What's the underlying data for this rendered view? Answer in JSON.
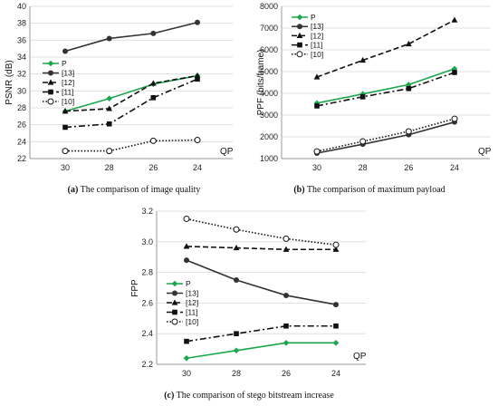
{
  "chart_data": [
    {
      "type": "line",
      "caption_label": "(a)",
      "caption_text": "The comparison of image quality",
      "xlabel": "QP",
      "ylabel": "PSNR (dB)",
      "categories": [
        "30",
        "28",
        "26",
        "24"
      ],
      "yticks": [
        22,
        24,
        26,
        28,
        30,
        32,
        34,
        36,
        38,
        40
      ],
      "ylim": [
        22,
        40
      ],
      "legend_position": "left",
      "series": [
        {
          "name": "P",
          "values": [
            27.6,
            29.1,
            30.8,
            31.8
          ],
          "color": "#1aa64a",
          "dash": "",
          "marker": "diamond"
        },
        {
          "name": "[13]",
          "values": [
            34.7,
            36.2,
            36.8,
            38.1
          ],
          "color": "#333333",
          "dash": "",
          "marker": "circle"
        },
        {
          "name": "[12]",
          "values": [
            27.6,
            27.9,
            30.9,
            31.8
          ],
          "color": "#111111",
          "dash": "6,3",
          "marker": "triangle"
        },
        {
          "name": "[11]",
          "values": [
            25.7,
            26.1,
            29.2,
            31.4
          ],
          "color": "#111111",
          "dash": "7,3,2,3",
          "marker": "square"
        },
        {
          "name": "[10]",
          "values": [
            22.9,
            22.9,
            24.1,
            24.2
          ],
          "color": "#111111",
          "dash": "1.5,2",
          "marker": "opencircle"
        }
      ]
    },
    {
      "type": "line",
      "caption_label": "(b)",
      "caption_text": "The comparison of maximum payload",
      "xlabel": "QP",
      "ylabel": "PPF (bits/frame)",
      "categories": [
        "30",
        "28",
        "26",
        "24"
      ],
      "yticks": [
        1000,
        2000,
        3000,
        4000,
        5000,
        6000,
        7000,
        8000
      ],
      "ylim": [
        1000,
        8000
      ],
      "legend_position": "top-left",
      "series": [
        {
          "name": "P",
          "values": [
            3550,
            3970,
            4400,
            5130
          ],
          "color": "#1aa64a",
          "dash": "",
          "marker": "diamond"
        },
        {
          "name": "[13]",
          "values": [
            1250,
            1660,
            2100,
            2680
          ],
          "color": "#333333",
          "dash": "",
          "marker": "circle"
        },
        {
          "name": "[12]",
          "values": [
            4750,
            5520,
            6270,
            7370
          ],
          "color": "#111111",
          "dash": "6,3",
          "marker": "triangle"
        },
        {
          "name": "[11]",
          "values": [
            3420,
            3840,
            4220,
            4960
          ],
          "color": "#111111",
          "dash": "7,3,2,3",
          "marker": "square"
        },
        {
          "name": "[10]",
          "values": [
            1330,
            1790,
            2250,
            2830
          ],
          "color": "#111111",
          "dash": "1.5,2",
          "marker": "opencircle"
        }
      ]
    },
    {
      "type": "line",
      "caption_label": "(c)",
      "caption_text": "The comparison of stego bitstream increase",
      "xlabel": "QP",
      "ylabel": "FPP",
      "categories": [
        "30",
        "28",
        "26",
        "24"
      ],
      "yticks": [
        "2.2",
        "2.4",
        "2.6",
        "2.8",
        "3.0",
        "3.2"
      ],
      "ylim": [
        2.2,
        3.2
      ],
      "legend_position": "bottom-left",
      "series": [
        {
          "name": "P",
          "values": [
            2.24,
            2.29,
            2.34,
            2.34
          ],
          "color": "#1aa64a",
          "dash": "",
          "marker": "diamond"
        },
        {
          "name": "[13]",
          "values": [
            2.88,
            2.75,
            2.65,
            2.59
          ],
          "color": "#333333",
          "dash": "",
          "marker": "circle"
        },
        {
          "name": "[12]",
          "values": [
            2.97,
            2.96,
            2.95,
            2.95
          ],
          "color": "#111111",
          "dash": "6,3",
          "marker": "triangle"
        },
        {
          "name": "[11]",
          "values": [
            2.35,
            2.4,
            2.45,
            2.45
          ],
          "color": "#111111",
          "dash": "7,3,2,3",
          "marker": "square"
        },
        {
          "name": "[10]",
          "values": [
            3.15,
            3.08,
            3.02,
            2.98
          ],
          "color": "#111111",
          "dash": "1.5,2",
          "marker": "opencircle"
        }
      ]
    }
  ]
}
